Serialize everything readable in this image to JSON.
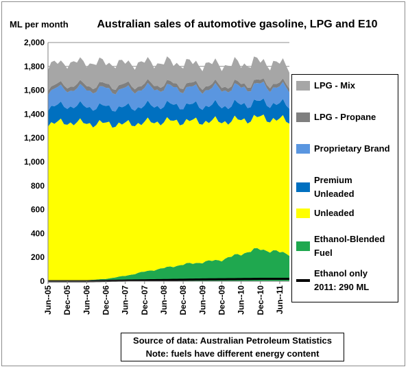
{
  "chart_data": {
    "type": "area",
    "stacked": true,
    "title": "Australian sales of automotive gasoline, LPG and E10",
    "ylabel": "ML per month",
    "ylim": [
      0,
      2000
    ],
    "yticks": [
      0,
      200,
      400,
      600,
      800,
      1000,
      1200,
      1400,
      1600,
      1800,
      2000
    ],
    "ytick_labels": [
      "0",
      "200",
      "400",
      "600",
      "800",
      "1,000",
      "1,200",
      "1,400",
      "1,600",
      "1,800",
      "2,000"
    ],
    "x_start": "Jun-05",
    "x_end": "Sep-11",
    "xtick_labels": [
      "Jun--05",
      "Dec--05",
      "Jun--06",
      "Dec--06",
      "Jun--07",
      "Dec--07",
      "Jun--08",
      "Dec--08",
      "Jun--09",
      "Dec--09",
      "Jun--10",
      "Dec--10",
      "Jun--11"
    ],
    "grid": "horizontal",
    "legend_position": "right",
    "series": [
      {
        "name": "Ethanol-Blended Fuel",
        "color": "#1fa84f",
        "points": [
          [
            0,
            0
          ],
          [
            6,
            2
          ],
          [
            12,
            8
          ],
          [
            18,
            20
          ],
          [
            24,
            45
          ],
          [
            30,
            80
          ],
          [
            36,
            110
          ],
          [
            42,
            140
          ],
          [
            48,
            160
          ],
          [
            54,
            180
          ],
          [
            60,
            230
          ],
          [
            64,
            260
          ],
          [
            66,
            270
          ],
          [
            69,
            255
          ],
          [
            75,
            230
          ]
        ]
      },
      {
        "name": "Unleaded",
        "color": "#ffff00",
        "points": [
          [
            0,
            1320
          ],
          [
            6,
            1330
          ],
          [
            12,
            1315
          ],
          [
            18,
            1300
          ],
          [
            24,
            1270
          ],
          [
            30,
            1250
          ],
          [
            36,
            1230
          ],
          [
            42,
            1200
          ],
          [
            48,
            1180
          ],
          [
            54,
            1160
          ],
          [
            60,
            1120
          ],
          [
            66,
            1100
          ],
          [
            70,
            1110
          ],
          [
            75,
            1110
          ]
        ]
      },
      {
        "name": "Premium Unleaded",
        "color": "#0070c0",
        "points": [
          [
            0,
            140
          ],
          [
            12,
            140
          ],
          [
            24,
            138
          ],
          [
            36,
            135
          ],
          [
            48,
            132
          ],
          [
            60,
            130
          ],
          [
            75,
            130
          ]
        ]
      },
      {
        "name": "Proprietary Brand",
        "color": "#5a96e0",
        "points": [
          [
            0,
            140
          ],
          [
            12,
            145
          ],
          [
            24,
            150
          ],
          [
            36,
            145
          ],
          [
            48,
            140
          ],
          [
            60,
            140
          ],
          [
            75,
            140
          ]
        ]
      },
      {
        "name": "LPG  - Propane",
        "color": "#7f7f7f",
        "points": [
          [
            0,
            30
          ],
          [
            12,
            35
          ],
          [
            24,
            35
          ],
          [
            36,
            33
          ],
          [
            48,
            32
          ],
          [
            60,
            30
          ],
          [
            75,
            30
          ]
        ]
      },
      {
        "name": "LPG - Mix",
        "color": "#a6a6a6",
        "points": [
          [
            0,
            180
          ],
          [
            12,
            190
          ],
          [
            24,
            185
          ],
          [
            36,
            180
          ],
          [
            48,
            175
          ],
          [
            60,
            170
          ],
          [
            75,
            165
          ]
        ]
      }
    ],
    "line_series": {
      "name": "Ethanol only",
      "color": "#000000",
      "points": [
        [
          0,
          0
        ],
        [
          12,
          0
        ],
        [
          24,
          5
        ],
        [
          36,
          10
        ],
        [
          48,
          15
        ],
        [
          60,
          18
        ],
        [
          66,
          20
        ],
        [
          75,
          20
        ]
      ]
    },
    "annotation": "2011: 290 ML"
  },
  "legend": {
    "lpg_mix": "LPG - Mix",
    "lpg_propane": "LPG  - Propane",
    "proprietary": "Proprietary Brand",
    "premium_1": "Premium",
    "premium_2": "Unleaded",
    "unleaded": "Unleaded",
    "ethanol_blended_1": "Ethanol-Blended",
    "ethanol_blended_2": "Fuel",
    "ethanol_only_1": "Ethanol only",
    "ethanol_only_2": "2011: 290 ML"
  },
  "source": {
    "line1": "Source of data: Australian Petroleum Statistics",
    "line2": "Note: fuels have different energy content"
  }
}
